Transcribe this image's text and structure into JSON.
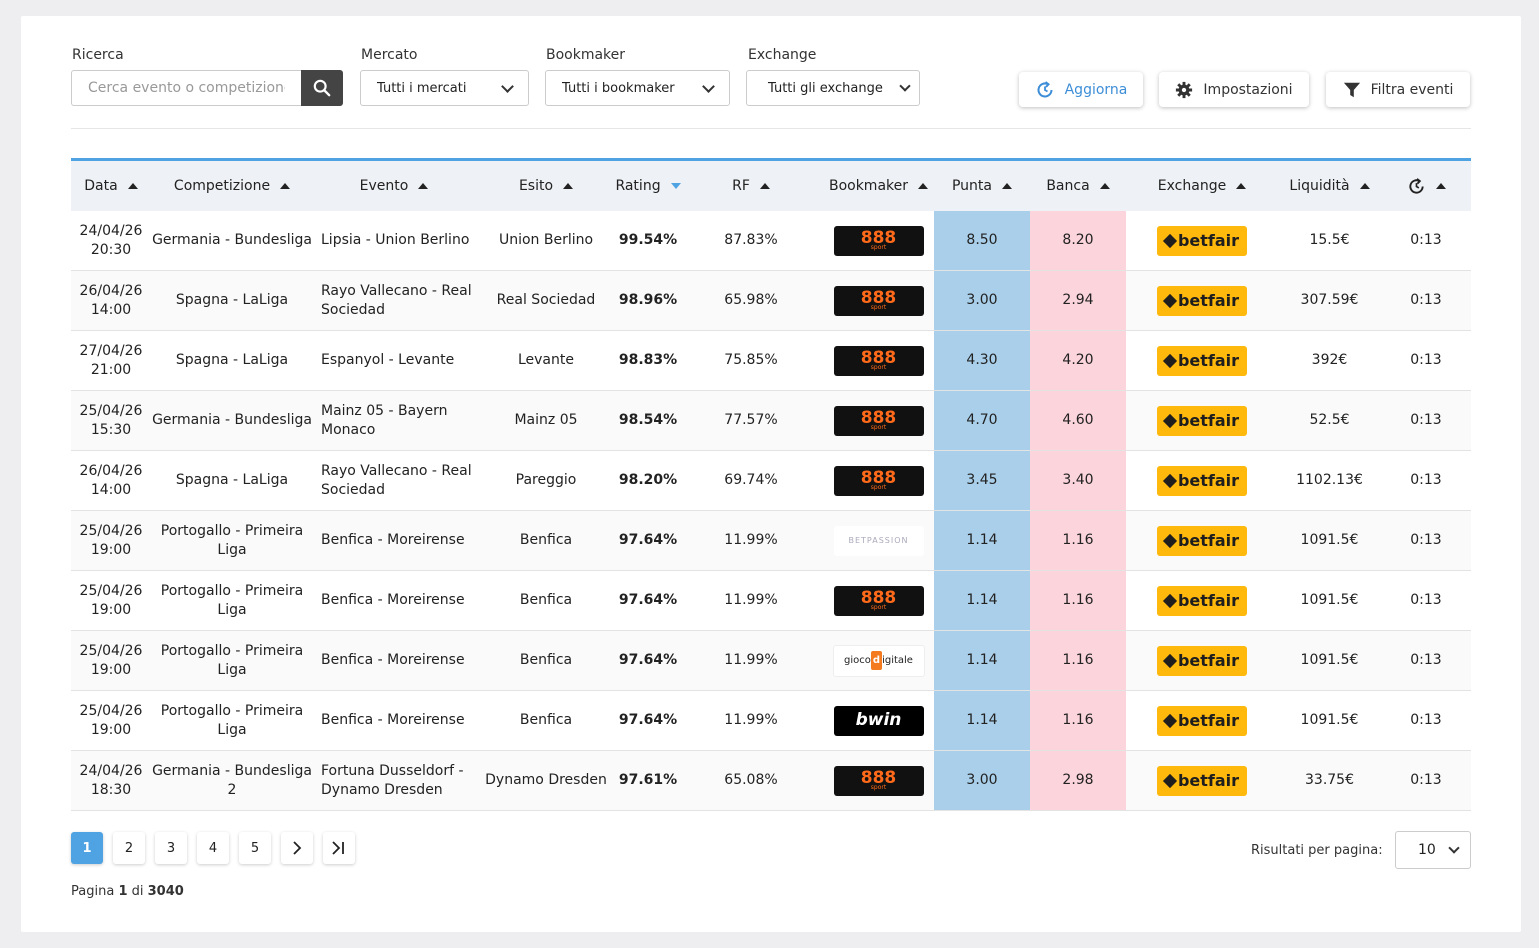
{
  "filters": {
    "search_label": "Ricerca",
    "search_placeholder": "Cerca evento o competizione",
    "mercato_label": "Mercato",
    "mercato_value": "Tutti i mercati",
    "bookmaker_label": "Bookmaker",
    "bookmaker_value": "Tutti i bookmaker",
    "exchange_label": "Exchange",
    "exchange_value": "Tutti gli exchange"
  },
  "toolbar": {
    "refresh_label": "Aggiorna",
    "settings_label": "Impostazioni",
    "filter_label": "Filtra eventi",
    "accent": "#3d8ed8"
  },
  "table": {
    "headers": {
      "data": "Data",
      "competizione": "Competizione",
      "evento": "Evento",
      "esito": "Esito",
      "rating": "Rating",
      "rf": "RF",
      "bookmaker": "Bookmaker",
      "punta": "Punta",
      "banca": "Banca",
      "exchange": "Exchange",
      "liquidita": "Liquidità"
    },
    "rows": [
      {
        "date": "24/04/26",
        "time": "20:30",
        "comp": "Germania - Bundesliga",
        "event": "Lipsia - Union Berlino",
        "esito": "Union Berlino",
        "rating": "99.54%",
        "rf": "87.83%",
        "bookmaker": "888",
        "punta": "8.50",
        "banca": "8.20",
        "exchange": "betfair",
        "liq": "15.5€",
        "upd": "0:13"
      },
      {
        "date": "26/04/26",
        "time": "14:00",
        "comp": "Spagna - LaLiga",
        "event": "Rayo Vallecano - Real Sociedad",
        "esito": "Real Sociedad",
        "rating": "98.96%",
        "rf": "65.98%",
        "bookmaker": "888",
        "punta": "3.00",
        "banca": "2.94",
        "exchange": "betfair",
        "liq": "307.59€",
        "upd": "0:13"
      },
      {
        "date": "27/04/26",
        "time": "21:00",
        "comp": "Spagna - LaLiga",
        "event": "Espanyol - Levante",
        "esito": "Levante",
        "rating": "98.83%",
        "rf": "75.85%",
        "bookmaker": "888",
        "punta": "4.30",
        "banca": "4.20",
        "exchange": "betfair",
        "liq": "392€",
        "upd": "0:13"
      },
      {
        "date": "25/04/26",
        "time": "15:30",
        "comp": "Germania - Bundesliga",
        "event": "Mainz 05 - Bayern Monaco",
        "esito": "Mainz 05",
        "rating": "98.54%",
        "rf": "77.57%",
        "bookmaker": "888",
        "punta": "4.70",
        "banca": "4.60",
        "exchange": "betfair",
        "liq": "52.5€",
        "upd": "0:13"
      },
      {
        "date": "26/04/26",
        "time": "14:00",
        "comp": "Spagna - LaLiga",
        "event": "Rayo Vallecano - Real Sociedad",
        "esito": "Pareggio",
        "rating": "98.20%",
        "rf": "69.74%",
        "bookmaker": "888",
        "punta": "3.45",
        "banca": "3.40",
        "exchange": "betfair",
        "liq": "1102.13€",
        "upd": "0:13"
      },
      {
        "date": "25/04/26",
        "time": "19:00",
        "comp": "Portogallo - Primeira Liga",
        "event": "Benfica - Moreirense",
        "esito": "Benfica",
        "rating": "97.64%",
        "rf": "11.99%",
        "bookmaker": "BETPASSION",
        "punta": "1.14",
        "banca": "1.16",
        "exchange": "betfair",
        "liq": "1091.5€",
        "upd": "0:13"
      },
      {
        "date": "25/04/26",
        "time": "19:00",
        "comp": "Portogallo - Primeira Liga",
        "event": "Benfica - Moreirense",
        "esito": "Benfica",
        "rating": "97.64%",
        "rf": "11.99%",
        "bookmaker": "888",
        "punta": "1.14",
        "banca": "1.16",
        "exchange": "betfair",
        "liq": "1091.5€",
        "upd": "0:13"
      },
      {
        "date": "25/04/26",
        "time": "19:00",
        "comp": "Portogallo - Primeira Liga",
        "event": "Benfica - Moreirense",
        "esito": "Benfica",
        "rating": "97.64%",
        "rf": "11.99%",
        "bookmaker": "gioco digitale",
        "punta": "1.14",
        "banca": "1.16",
        "exchange": "betfair",
        "liq": "1091.5€",
        "upd": "0:13"
      },
      {
        "date": "25/04/26",
        "time": "19:00",
        "comp": "Portogallo - Primeira Liga",
        "event": "Benfica - Moreirense",
        "esito": "Benfica",
        "rating": "97.64%",
        "rf": "11.99%",
        "bookmaker": "bwin",
        "punta": "1.14",
        "banca": "1.16",
        "exchange": "betfair",
        "liq": "1091.5€",
        "upd": "0:13"
      },
      {
        "date": "24/04/26",
        "time": "18:30",
        "comp": "Germania - Bundesliga 2",
        "event": "Fortuna Dusseldorf - Dynamo Dresden",
        "esito": "Dynamo Dresden",
        "rating": "97.61%",
        "rf": "65.08%",
        "bookmaker": "888",
        "punta": "3.00",
        "banca": "2.98",
        "exchange": "betfair",
        "liq": "33.75€",
        "upd": "0:13"
      }
    ]
  },
  "pagination": {
    "pages": [
      "1",
      "2",
      "3",
      "4",
      "5"
    ],
    "active": "1",
    "info_prefix": "Pagina",
    "current": "1",
    "info_mid": "di",
    "total": "3040",
    "rpp_label": "Risultati per pagina:",
    "rpp_value": "10"
  },
  "colors": {
    "punta_bg": "#a9cfea",
    "banca_bg": "#fbd4dc",
    "header_border": "#4fa3e3",
    "betfair": "#ffb80c"
  }
}
